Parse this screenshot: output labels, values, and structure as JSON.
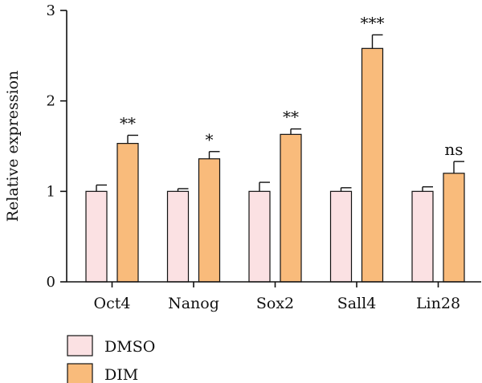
{
  "chart_data": {
    "type": "bar",
    "title": "",
    "xlabel": "",
    "ylabel": "Relative expression",
    "ylim": [
      0,
      3
    ],
    "yticks": [
      0,
      1,
      2,
      3
    ],
    "categories": [
      "Oct4",
      "Nanog",
      "Sox2",
      "Sall4",
      "Lin28"
    ],
    "series": [
      {
        "name": "DMSO",
        "color": "#fbe1e3",
        "values": [
          1.0,
          1.0,
          1.0,
          1.0,
          1.0
        ],
        "errors": [
          0.07,
          0.03,
          0.1,
          0.04,
          0.05
        ]
      },
      {
        "name": "DIM",
        "color": "#f9bb7b",
        "values": [
          1.53,
          1.36,
          1.63,
          2.58,
          1.2
        ],
        "errors": [
          0.09,
          0.08,
          0.06,
          0.15,
          0.13
        ]
      }
    ],
    "annotations": [
      "**",
      "*",
      "**",
      "***",
      "ns"
    ],
    "grid": false,
    "legend_position": "bottom-left"
  }
}
